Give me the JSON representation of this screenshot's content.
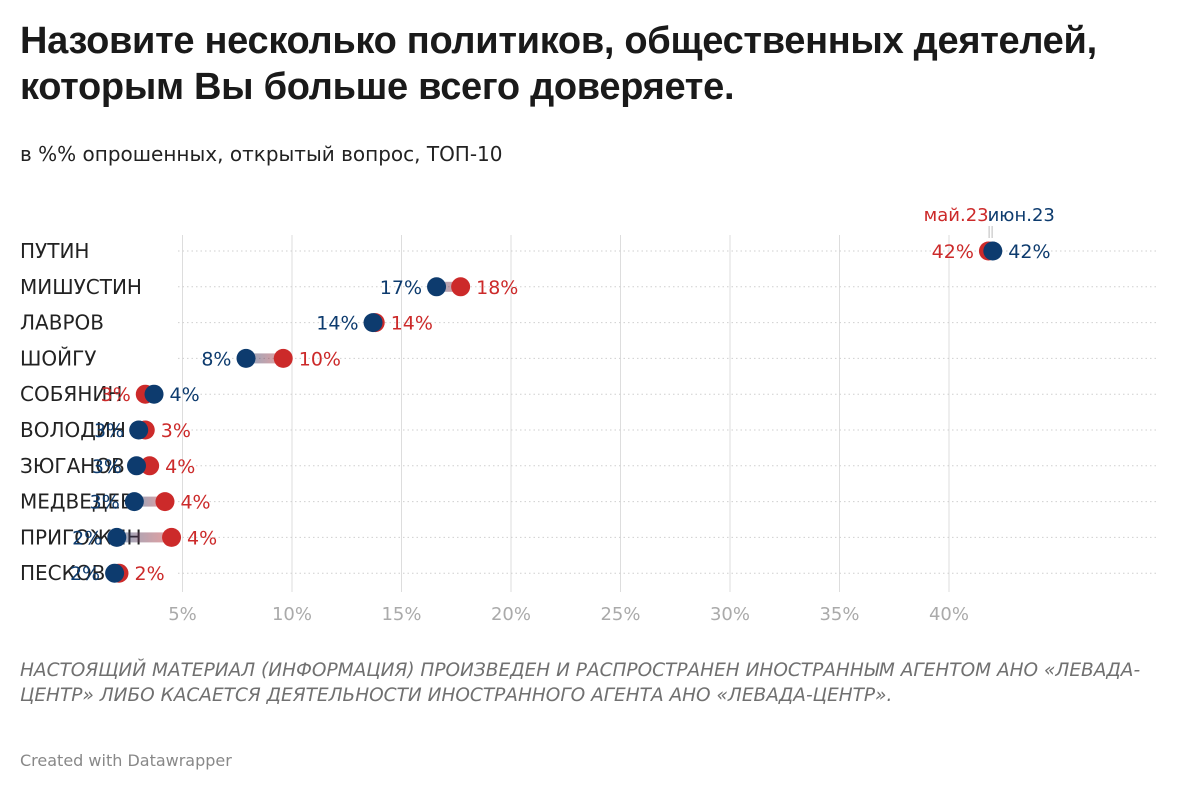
{
  "header": {
    "title": "Назовите несколько политиков, общественных деятелей, которым Вы больше всего доверяете.",
    "subtitle": "в %% опрошенных, открытый вопрос, ТОП-10"
  },
  "colors": {
    "may": "#cc2a2a",
    "june": "#0d3b6e",
    "grid": "#dddddd",
    "tick": "#aaaaaa"
  },
  "chart_data": {
    "type": "dot-range",
    "categories": [
      "ПУТИН",
      "МИШУСТИН",
      "ЛАВРОВ",
      "ШОЙГУ",
      "СОБЯНИН",
      "ВОЛОДИН",
      "ЗЮГАНОВ",
      "МЕДВЕДЕВ",
      "ПРИГОЖИН",
      "ПЕСКОВ"
    ],
    "series": [
      {
        "name": "май.23",
        "color": "#cc2a2a",
        "values": [
          41.8,
          17.7,
          13.8,
          9.6,
          3.3,
          3.3,
          3.5,
          4.2,
          4.5,
          2.1
        ],
        "labels": [
          "42%",
          "18%",
          "14%",
          "10%",
          "3%",
          "3%",
          "4%",
          "4%",
          "4%",
          "2%"
        ]
      },
      {
        "name": "июн.23",
        "color": "#0d3b6e",
        "values": [
          42.0,
          16.6,
          13.7,
          7.9,
          3.7,
          3.0,
          2.9,
          2.8,
          2.0,
          1.9
        ],
        "labels": [
          "42%",
          "17%",
          "14%",
          "8%",
          "4%",
          "3%",
          "3%",
          "3%",
          "2%",
          "2%"
        ]
      }
    ],
    "xticks": [
      5,
      10,
      15,
      20,
      25,
      30,
      35,
      40
    ],
    "xtick_labels": [
      "5%",
      "10%",
      "15%",
      "20%",
      "25%",
      "30%",
      "35%",
      "40%"
    ],
    "xlim": [
      0,
      45
    ],
    "grid": true,
    "legend_placement": "top-right"
  },
  "footer": {
    "note": "НАСТОЯЩИЙ МАТЕРИАЛ (ИНФОРМАЦИЯ) ПРОИЗВЕДЕН И РАСПРОСТРАНЕН ИНОСТРАННЫМ АГЕНТОМ АНО «ЛЕВАДА-ЦЕНТР» ЛИБО КАСАЕТСЯ ДЕЯТЕЛЬНОСТИ ИНОСТРАННОГО АГЕНТА АНО «ЛЕВАДА-ЦЕНТР».",
    "credit": "Created with Datawrapper"
  }
}
